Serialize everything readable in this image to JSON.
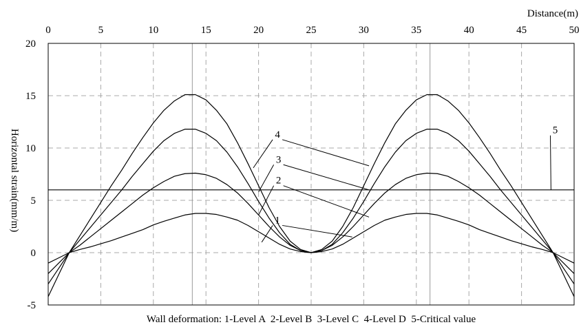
{
  "chart_data": {
    "type": "line",
    "xlabel": "Distance(m)",
    "ylabel": "Horizontal strain(mm/m)",
    "caption": "Wall deformation: 1-Level A  2-Level B  3-Level C  4-Level D  5-Critical value",
    "xlim": [
      0,
      50
    ],
    "ylim": [
      -5,
      20
    ],
    "x_ticks": [
      0,
      5,
      10,
      15,
      20,
      25,
      30,
      35,
      40,
      45,
      50
    ],
    "y_ticks": [
      -5,
      0,
      5,
      10,
      15,
      20
    ],
    "x_tick_labels": [
      "0",
      "5",
      "10",
      "15",
      "20",
      "25",
      "30",
      "35",
      "40",
      "45",
      "50"
    ],
    "y_tick_labels": [
      "-5",
      "0",
      "5",
      "10",
      "15",
      "20"
    ],
    "grid": true,
    "reference_lines_x": [
      13.7,
      36.3
    ],
    "series": [
      {
        "name": "1",
        "x": [
          0,
          1,
          2,
          3,
          4,
          5,
          6,
          7,
          8,
          9,
          10,
          11,
          12,
          13,
          14,
          15,
          16,
          17,
          18,
          19,
          20,
          21,
          22,
          23,
          24,
          25,
          26,
          27,
          28,
          29,
          30,
          31,
          32,
          33,
          34,
          35,
          36,
          37,
          38,
          39,
          40,
          41,
          42,
          43,
          44,
          45,
          46,
          47,
          48,
          49,
          50
        ],
        "y": [
          -1.0,
          -0.5,
          0.0,
          0.3,
          0.55,
          0.85,
          1.15,
          1.5,
          1.85,
          2.2,
          2.65,
          3.0,
          3.3,
          3.6,
          3.75,
          3.75,
          3.65,
          3.4,
          3.1,
          2.6,
          2.0,
          1.4,
          0.8,
          0.35,
          0.1,
          0.0,
          0.1,
          0.35,
          0.8,
          1.4,
          2.0,
          2.6,
          3.1,
          3.4,
          3.65,
          3.75,
          3.75,
          3.6,
          3.3,
          3.0,
          2.65,
          2.2,
          1.85,
          1.5,
          1.15,
          0.85,
          0.55,
          0.3,
          0.0,
          -0.5,
          -1.0
        ]
      },
      {
        "name": "2",
        "x": [
          0,
          1,
          2,
          3,
          4,
          5,
          6,
          7,
          8,
          9,
          10,
          11,
          12,
          13,
          14,
          15,
          16,
          17,
          18,
          19,
          20,
          21,
          22,
          23,
          24,
          25,
          26,
          27,
          28,
          29,
          30,
          31,
          32,
          33,
          34,
          35,
          36,
          37,
          38,
          39,
          40,
          41,
          42,
          43,
          44,
          45,
          46,
          47,
          48,
          49,
          50
        ],
        "y": [
          -2.0,
          -1.0,
          0.0,
          0.7,
          1.5,
          2.3,
          3.1,
          3.9,
          4.7,
          5.5,
          6.2,
          6.8,
          7.3,
          7.55,
          7.6,
          7.45,
          7.1,
          6.5,
          5.7,
          4.7,
          3.6,
          2.5,
          1.5,
          0.7,
          0.2,
          0.0,
          0.2,
          0.7,
          1.5,
          2.5,
          3.6,
          4.7,
          5.7,
          6.5,
          7.1,
          7.45,
          7.6,
          7.55,
          7.3,
          6.8,
          6.2,
          5.5,
          4.7,
          3.9,
          3.1,
          2.3,
          1.5,
          0.7,
          0.0,
          -1.0,
          -2.0
        ]
      },
      {
        "name": "3",
        "x": [
          0,
          1,
          2,
          3,
          4,
          5,
          6,
          7,
          8,
          9,
          10,
          11,
          12,
          13,
          14,
          15,
          16,
          17,
          18,
          19,
          20,
          21,
          22,
          23,
          24,
          25,
          26,
          27,
          28,
          29,
          30,
          31,
          32,
          33,
          34,
          35,
          36,
          37,
          38,
          39,
          40,
          41,
          42,
          43,
          44,
          45,
          46,
          47,
          48,
          49,
          50
        ],
        "y": [
          -3.0,
          -1.5,
          0.0,
          1.2,
          2.4,
          3.6,
          4.8,
          6.0,
          7.3,
          8.5,
          9.7,
          10.7,
          11.4,
          11.8,
          11.8,
          11.4,
          10.7,
          9.6,
          8.2,
          6.6,
          4.9,
          3.3,
          1.9,
          0.8,
          0.2,
          0.0,
          0.2,
          0.8,
          1.9,
          3.3,
          4.9,
          6.6,
          8.2,
          9.6,
          10.7,
          11.4,
          11.8,
          11.8,
          11.4,
          10.7,
          9.7,
          8.5,
          7.3,
          6.0,
          4.8,
          3.6,
          2.4,
          1.2,
          0.0,
          -1.5,
          -3.0
        ]
      },
      {
        "name": "4",
        "x": [
          0,
          1,
          2,
          3,
          4,
          5,
          6,
          7,
          8,
          9,
          10,
          11,
          12,
          13,
          14,
          15,
          16,
          17,
          18,
          19,
          20,
          21,
          22,
          23,
          24,
          25,
          26,
          27,
          28,
          29,
          30,
          31,
          32,
          33,
          34,
          35,
          36,
          37,
          38,
          39,
          40,
          41,
          42,
          43,
          44,
          45,
          46,
          47,
          48,
          49,
          50
        ],
        "y": [
          -4.2,
          -2.1,
          0.0,
          1.6,
          3.2,
          4.8,
          6.4,
          7.9,
          9.5,
          11.0,
          12.4,
          13.6,
          14.5,
          15.1,
          15.1,
          14.6,
          13.6,
          12.3,
          10.5,
          8.5,
          6.4,
          4.3,
          2.5,
          1.1,
          0.3,
          0.0,
          0.3,
          1.1,
          2.5,
          4.3,
          6.4,
          8.5,
          10.5,
          12.3,
          13.6,
          14.6,
          15.1,
          15.1,
          14.5,
          13.6,
          12.4,
          11.0,
          9.5,
          7.9,
          6.4,
          4.8,
          3.2,
          1.6,
          0.0,
          -2.1,
          -4.2
        ]
      },
      {
        "name": "5",
        "x": [
          0,
          50
        ],
        "y": [
          6,
          6
        ]
      }
    ],
    "annotations": [
      {
        "label": "1",
        "at": [
          21.8,
          2.8
        ],
        "callouts": [
          [
            20.3,
            1.0
          ],
          [
            28.9,
            1.5
          ]
        ]
      },
      {
        "label": "2",
        "at": [
          21.9,
          6.6
        ],
        "callouts": [
          [
            20.0,
            3.6
          ],
          [
            30.5,
            3.4
          ]
        ]
      },
      {
        "label": "3",
        "at": [
          21.9,
          8.6
        ],
        "callouts": [
          [
            20.0,
            5.8
          ],
          [
            30.5,
            6.0
          ]
        ]
      },
      {
        "label": "4",
        "at": [
          21.8,
          11.0
        ],
        "callouts": [
          [
            19.5,
            8.1
          ],
          [
            30.5,
            8.3
          ]
        ]
      },
      {
        "label": "5",
        "at": [
          48.2,
          11.4
        ],
        "callouts": [
          [
            47.8,
            6.0
          ]
        ]
      }
    ]
  }
}
